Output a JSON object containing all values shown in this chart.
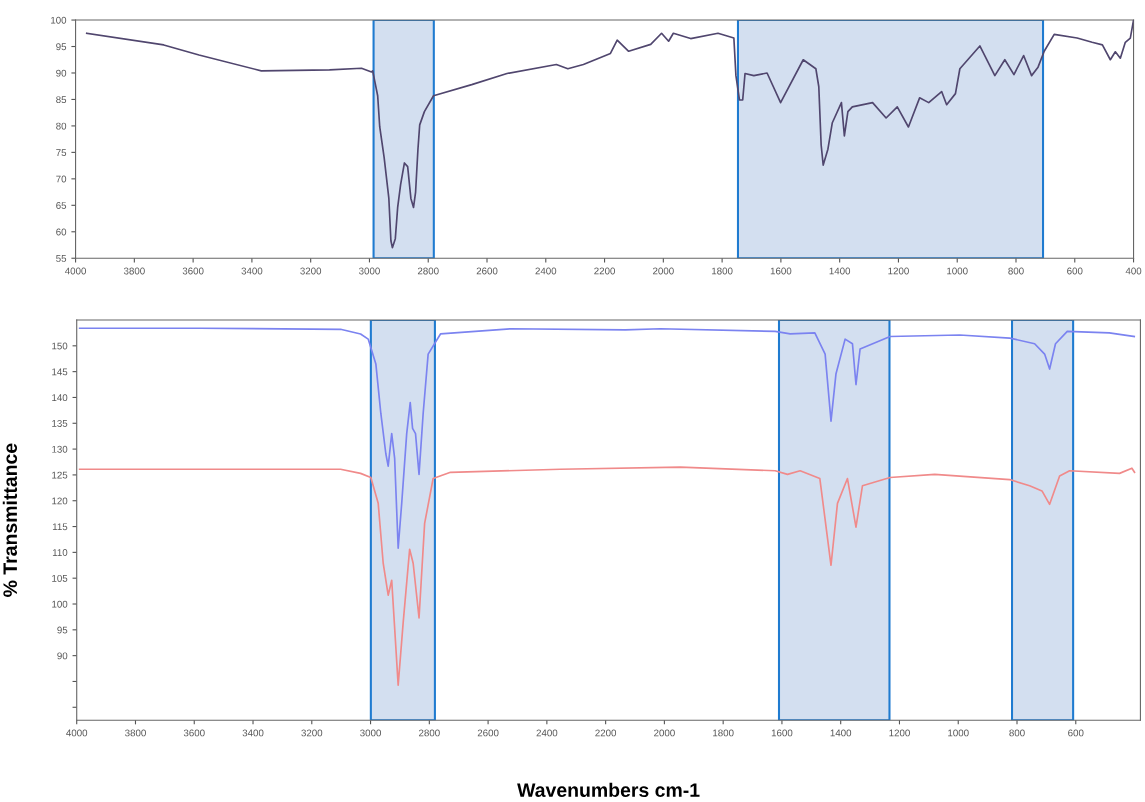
{
  "chart_data": [
    {
      "type": "line",
      "xlim": [
        4000,
        400
      ],
      "ylim": [
        55,
        100
      ],
      "xticks": [
        4000,
        3800,
        3600,
        3400,
        3200,
        3000,
        2800,
        2600,
        2400,
        2200,
        2000,
        1800,
        1600,
        1400,
        1200,
        1000,
        800,
        600,
        400
      ],
      "yticks": [
        55,
        60,
        65,
        70,
        75,
        80,
        85,
        90,
        95,
        100
      ],
      "grid": false,
      "legend": false,
      "marker": "none",
      "line_style": "solid",
      "bands": [
        {
          "axis": "x",
          "from": 2986,
          "to": 2781,
          "color": "#d3dff0"
        },
        {
          "axis": "x",
          "from": 1746,
          "to": 708,
          "color": "#d3dff0"
        }
      ],
      "series": [
        {
          "color": "#50466e",
          "x": [
            3962,
            3700,
            3580,
            3368,
            3136,
            3027,
            2993,
            2989,
            2972,
            2965,
            2950,
            2934,
            2927,
            2922,
            2912,
            2904,
            2894,
            2881,
            2870,
            2859,
            2850,
            2843,
            2835,
            2829,
            2813,
            2782,
            2652,
            2532,
            2364,
            2325,
            2272,
            2180,
            2157,
            2118,
            2043,
            2006,
            1982,
            1966,
            1907,
            1814,
            1760,
            1753,
            1741,
            1730,
            1722,
            1692,
            1647,
            1601,
            1524,
            1481,
            1471,
            1463,
            1456,
            1440,
            1425,
            1394,
            1384,
            1372,
            1357,
            1288,
            1242,
            1204,
            1166,
            1128,
            1097,
            1053,
            1036,
            1006,
            991,
            923,
            872,
            838,
            807,
            774,
            747,
            725,
            704,
            670,
            592,
            541,
            506,
            479,
            462,
            445,
            428,
            411,
            400
          ],
          "values": [
            97.5,
            95.3,
            93.4,
            90.4,
            90.6,
            90.9,
            90.2,
            90.4,
            85.7,
            79.8,
            74,
            66.3,
            58.3,
            57,
            58.7,
            64.6,
            68.9,
            73,
            72.3,
            66.3,
            64.6,
            67.5,
            75.6,
            80.2,
            82.7,
            85.7,
            87.8,
            89.9,
            91.6,
            90.8,
            91.6,
            93.7,
            96.2,
            94.1,
            95.4,
            97.5,
            96,
            97.5,
            96.5,
            97.5,
            96.6,
            89.5,
            84.9,
            84.9,
            89.9,
            89.5,
            90,
            84.4,
            92.5,
            90.8,
            87.4,
            76.4,
            72.6,
            75.6,
            80.6,
            84.4,
            78.1,
            82.7,
            83.6,
            84.4,
            81.5,
            83.6,
            79.8,
            85.3,
            84.4,
            86.5,
            84,
            86.1,
            90.8,
            95.1,
            89.5,
            92.5,
            89.7,
            93.3,
            89.5,
            91.1,
            94.1,
            97.3,
            96.6,
            95.8,
            95.3,
            92.5,
            94,
            92.8,
            95.8,
            96.6,
            100
          ]
        }
      ]
    },
    {
      "type": "line",
      "xlabel": "Wavenumbers cm-1",
      "ylabel": "% Transmittance",
      "xlim": [
        4000,
        380
      ],
      "ylim": [
        77.5,
        155
      ],
      "xticks": [
        4000,
        3800,
        3600,
        3400,
        3200,
        3000,
        2800,
        2600,
        2400,
        2200,
        2000,
        1800,
        1600,
        1400,
        1200,
        1000,
        800,
        600
      ],
      "yticks": [
        {
          "value": 80,
          "label": null
        },
        {
          "value": 85,
          "label": null
        },
        90,
        95,
        100,
        105,
        110,
        115,
        120,
        125,
        130,
        135,
        140,
        145,
        150
      ],
      "grid": false,
      "legend": false,
      "marker": "none",
      "line_style": "solid",
      "bands": [
        {
          "axis": "x",
          "from": 2999,
          "to": 2781,
          "color": "#d3dff0"
        },
        {
          "axis": "x",
          "from": 1610,
          "to": 1234,
          "color": "#d3dff0"
        },
        {
          "axis": "x",
          "from": 817,
          "to": 609,
          "color": "#d3dff0"
        }
      ],
      "series": [
        {
          "color": "#7b83f0",
          "x": [
            3990,
            3580,
            3102,
            3034,
            3008,
            2982,
            2965,
            2948,
            2940,
            2928,
            2918,
            2906,
            2894,
            2877,
            2865,
            2857,
            2847,
            2835,
            2821,
            2804,
            2762,
            2524,
            2133,
            2014,
            1623,
            1572,
            1488,
            1453,
            1433,
            1416,
            1385,
            1360,
            1348,
            1334,
            1232,
            995,
            825,
            740,
            706,
            689,
            669,
            629,
            486,
            401
          ],
          "values": [
            153.4,
            153.4,
            153.2,
            152.3,
            151.3,
            146.5,
            136.9,
            129.1,
            126.7,
            133,
            128.2,
            110.8,
            119.5,
            133,
            139,
            134,
            133,
            125.1,
            136.9,
            148.4,
            152.3,
            153.3,
            153.1,
            153.3,
            152.8,
            152.3,
            152.5,
            148.4,
            135.4,
            144.6,
            151.3,
            150.4,
            142.5,
            149.4,
            151.8,
            152.1,
            151.5,
            150.4,
            148.4,
            145.5,
            150.4,
            152.8,
            152.5,
            151.8
          ]
        },
        {
          "color": "#f08a8a",
          "x": [
            3990,
            3102,
            3034,
            2999,
            2974,
            2957,
            2940,
            2928,
            2906,
            2889,
            2867,
            2855,
            2835,
            2816,
            2787,
            2728,
            2354,
            1946,
            1623,
            1581,
            1538,
            1471,
            1433,
            1411,
            1377,
            1348,
            1326,
            1232,
            1080,
            825,
            757,
            715,
            689,
            655,
            621,
            451,
            409,
            400
          ],
          "values": [
            126.1,
            126.1,
            125.3,
            124.5,
            119.5,
            107.9,
            101.7,
            104.6,
            84.3,
            96.4,
            110.6,
            107.9,
            97.3,
            115.6,
            124.3,
            125.5,
            126.1,
            126.5,
            125.8,
            125.1,
            125.8,
            124.3,
            107.5,
            119.5,
            124.3,
            114.9,
            122.9,
            124.5,
            125.1,
            124.1,
            122.9,
            121.9,
            119.3,
            124.8,
            125.8,
            125.3,
            126.3,
            125.5
          ]
        }
      ]
    }
  ]
}
